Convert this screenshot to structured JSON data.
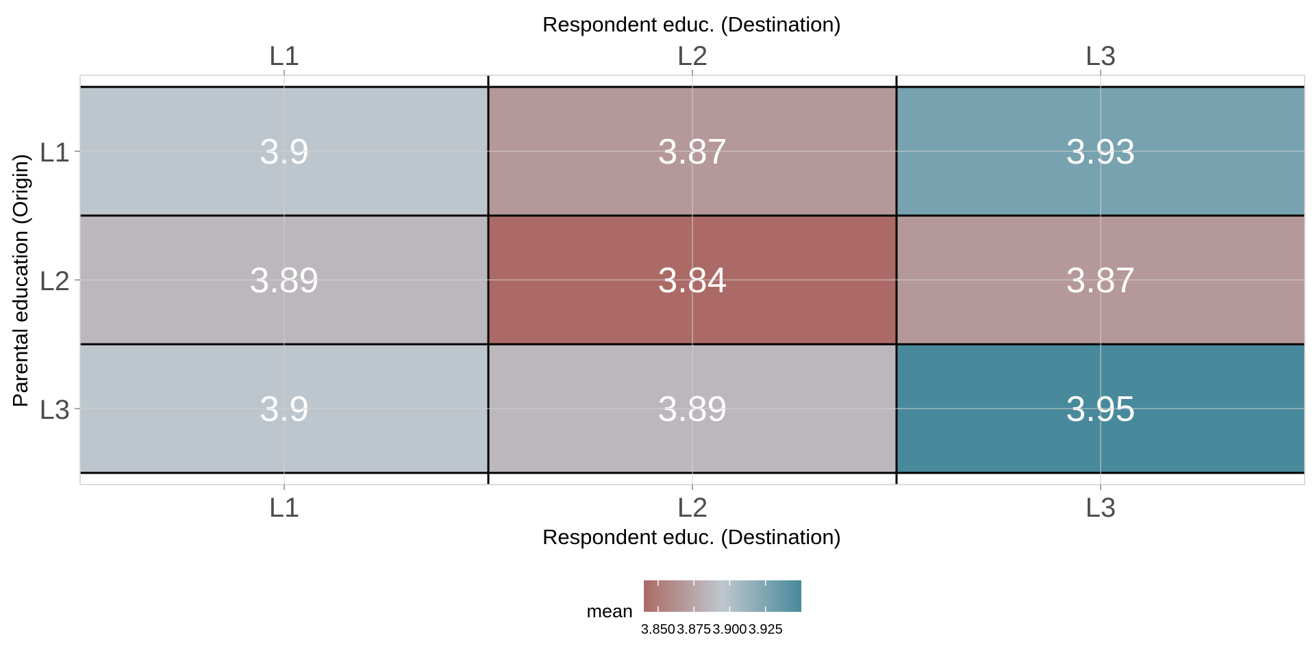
{
  "chart_data": {
    "type": "heatmap",
    "x_axis_title_top": "Respondent educ. (Destination)",
    "x_axis_title_bottom": "Respondent educ. (Destination)",
    "y_axis_title": "Parental education (Origin)",
    "x_categories": [
      "L1",
      "L2",
      "L3"
    ],
    "y_categories": [
      "L1",
      "L2",
      "L3"
    ],
    "cells": [
      {
        "x": "L1",
        "y": "L1",
        "value": 3.9,
        "label": "3.9"
      },
      {
        "x": "L2",
        "y": "L1",
        "value": 3.87,
        "label": "3.87"
      },
      {
        "x": "L3",
        "y": "L1",
        "value": 3.93,
        "label": "3.93"
      },
      {
        "x": "L1",
        "y": "L2",
        "value": 3.89,
        "label": "3.89"
      },
      {
        "x": "L2",
        "y": "L2",
        "value": 3.84,
        "label": "3.84"
      },
      {
        "x": "L3",
        "y": "L2",
        "value": 3.87,
        "label": "3.87"
      },
      {
        "x": "L1",
        "y": "L3",
        "value": 3.9,
        "label": "3.9"
      },
      {
        "x": "L2",
        "y": "L3",
        "value": 3.89,
        "label": "3.89"
      },
      {
        "x": "L3",
        "y": "L3",
        "value": 3.95,
        "label": "3.95"
      }
    ],
    "legend": {
      "title": "mean",
      "position": "bottom",
      "range": [
        3.84,
        3.95
      ],
      "midpoint": 3.9,
      "ticks": [
        {
          "value": 3.85,
          "label": "3.850"
        },
        {
          "value": 3.875,
          "label": "3.875"
        },
        {
          "value": 3.9,
          "label": "3.900"
        },
        {
          "value": 3.925,
          "label": "3.925"
        }
      ]
    },
    "colors": {
      "low": "#ac6a66",
      "mid": "#bec6cd",
      "high": "#488a9b",
      "cell_label": "#ffffff",
      "tick_label": "#4d4d4d",
      "grid": "#d0d0d0",
      "cell_border": "#000000"
    },
    "grid": true
  }
}
